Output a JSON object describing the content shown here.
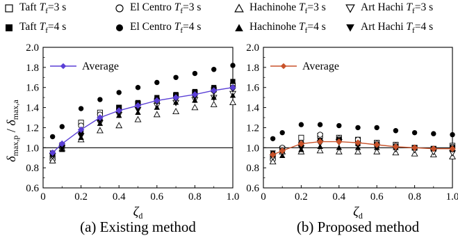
{
  "legend": [
    {
      "label": "Taft",
      "tf": "3 s",
      "marker": "square",
      "filled": false
    },
    {
      "label": "El Centro",
      "tf": "3 s",
      "marker": "circle",
      "filled": false
    },
    {
      "label": "Hachinohe",
      "tf": "3 s",
      "marker": "triangle-up",
      "filled": false
    },
    {
      "label": "Art Hachi",
      "tf": "3 s",
      "marker": "triangle-down",
      "filled": false
    },
    {
      "label": "Taft",
      "tf": "4 s",
      "marker": "square",
      "filled": true
    },
    {
      "label": "El Centro",
      "tf": "4 s",
      "marker": "circle",
      "filled": true
    },
    {
      "label": "Hachinohe",
      "tf": "4 s",
      "marker": "triangle-up",
      "filled": true
    },
    {
      "label": "Art Hachi",
      "tf": "4 s",
      "marker": "triangle-down",
      "filled": true
    }
  ],
  "legend_tf_symbol": "T",
  "legend_tf_sub": "f",
  "ylabel": {
    "main": "δ",
    "sub_num": "max,p",
    "sep": " / ",
    "sub_den": "max,a"
  },
  "xlabel": {
    "main": "ζ",
    "sub": "d"
  },
  "chart_data": [
    {
      "type": "scatter",
      "caption": "(a) Existing method",
      "xlim": [
        0,
        1.0
      ],
      "ylim": [
        0.6,
        2.0
      ],
      "xticks": [
        "0",
        "0.2",
        "0.4",
        "0.6",
        "0.8",
        "1.0"
      ],
      "yticks": [
        "0.6",
        "0.8",
        "1.0",
        "1.2",
        "1.4",
        "1.6",
        "1.8",
        "2.0"
      ],
      "reference_line": 1.0,
      "average_label": "Average",
      "average_color": "#5a3fd6",
      "x": [
        0.05,
        0.1,
        0.2,
        0.3,
        0.4,
        0.5,
        0.6,
        0.7,
        0.8,
        0.9,
        1.0
      ],
      "series": [
        {
          "name": "Taft Tf=3 s",
          "values": [
            0.9,
            1.02,
            1.25,
            1.35,
            1.4,
            1.44,
            1.47,
            1.52,
            1.55,
            1.58,
            1.62
          ]
        },
        {
          "name": "El Centro Tf=3 s",
          "values": [
            0.88,
            1.0,
            1.22,
            1.33,
            1.38,
            1.43,
            1.48,
            1.5,
            1.54,
            1.57,
            1.6
          ]
        },
        {
          "name": "Hachinohe Tf=3 s",
          "values": [
            0.87,
            0.99,
            1.08,
            1.17,
            1.22,
            1.28,
            1.33,
            1.36,
            1.4,
            1.43,
            1.45
          ]
        },
        {
          "name": "Art Hachi Tf=3 s",
          "values": [
            0.92,
            1.0,
            1.12,
            1.25,
            1.33,
            1.38,
            1.42,
            1.45,
            1.48,
            1.5,
            1.54
          ]
        },
        {
          "name": "Taft Tf=4 s",
          "values": [
            0.94,
            1.03,
            1.16,
            1.29,
            1.4,
            1.45,
            1.5,
            1.53,
            1.56,
            1.6,
            1.66
          ]
        },
        {
          "name": "El Centro Tf=4 s",
          "values": [
            1.11,
            1.21,
            1.39,
            1.48,
            1.55,
            1.6,
            1.65,
            1.7,
            1.74,
            1.78,
            1.82
          ]
        },
        {
          "name": "Hachinohe Tf=4 s",
          "values": [
            0.93,
            0.98,
            1.1,
            1.24,
            1.32,
            1.35,
            1.4,
            1.45,
            1.47,
            1.5,
            1.52
          ]
        },
        {
          "name": "Art Hachi Tf=4 s",
          "values": [
            0.95,
            1.0,
            1.12,
            1.26,
            1.34,
            1.38,
            1.45,
            1.48,
            1.5,
            1.55,
            1.58
          ]
        },
        {
          "name": "Average",
          "values": [
            0.95,
            1.04,
            1.18,
            1.3,
            1.37,
            1.42,
            1.47,
            1.5,
            1.53,
            1.57,
            1.6
          ]
        }
      ]
    },
    {
      "type": "scatter",
      "caption": "(b) Proposed method",
      "xlim": [
        0,
        1.0
      ],
      "ylim": [
        0.6,
        2.0
      ],
      "xticks": [
        "0",
        "0.2",
        "0.4",
        "0.6",
        "0.8",
        "1.0"
      ],
      "yticks": [
        "0.6",
        "0.8",
        "1.0",
        "1.2",
        "1.4",
        "1.6",
        "1.8",
        "2.0"
      ],
      "reference_line": 1.0,
      "average_label": "Average",
      "average_color": "#c8522a",
      "x": [
        0.05,
        0.1,
        0.2,
        0.3,
        0.4,
        0.5,
        0.6,
        0.7,
        0.8,
        0.9,
        1.0
      ],
      "series": [
        {
          "name": "Taft Tf=3 s",
          "values": [
            0.9,
            0.99,
            1.1,
            1.12,
            1.1,
            1.08,
            1.05,
            1.03,
            1.0,
            0.99,
            1.02
          ]
        },
        {
          "name": "El Centro Tf=3 s",
          "values": [
            0.88,
            1.0,
            1.05,
            1.13,
            1.09,
            1.08,
            1.04,
            1.02,
            1.0,
            0.98,
            1.01
          ]
        },
        {
          "name": "Hachinohe Tf=3 s",
          "values": [
            0.86,
            0.96,
            0.96,
            0.97,
            0.96,
            0.96,
            0.96,
            0.95,
            0.94,
            0.93,
            0.91
          ]
        },
        {
          "name": "Art Hachi Tf=3 s",
          "values": [
            0.91,
            0.98,
            1.0,
            1.05,
            1.06,
            1.03,
            1.01,
            0.99,
            0.98,
            0.96,
            0.95
          ]
        },
        {
          "name": "Taft Tf=4 s",
          "values": [
            0.93,
            0.97,
            1.04,
            1.07,
            1.08,
            1.04,
            1.03,
            1.01,
            1.0,
            0.99,
            1.0
          ]
        },
        {
          "name": "El Centro Tf=4 s",
          "values": [
            1.09,
            1.15,
            1.23,
            1.23,
            1.22,
            1.2,
            1.2,
            1.17,
            1.15,
            1.14,
            1.13
          ]
        },
        {
          "name": "Hachinohe Tf=4 s",
          "values": [
            0.94,
            0.92,
            0.98,
            1.01,
            1.0,
            1.0,
            1.0,
            1.0,
            1.0,
            0.99,
            0.98
          ]
        },
        {
          "name": "Art Hachi Tf=4 s",
          "values": [
            0.95,
            0.96,
            1.0,
            1.04,
            1.05,
            1.04,
            1.02,
            1.01,
            1.0,
            0.99,
            0.98
          ]
        },
        {
          "name": "Average",
          "values": [
            0.93,
            0.97,
            1.04,
            1.06,
            1.06,
            1.05,
            1.03,
            1.01,
            1.0,
            0.99,
            0.99
          ]
        }
      ]
    }
  ]
}
